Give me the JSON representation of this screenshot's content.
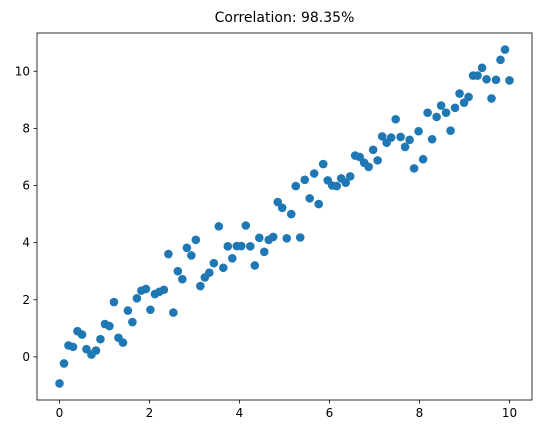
{
  "chart_data": {
    "type": "scatter",
    "title": "Correlation: 98.35%",
    "color": "#1f77b4",
    "x": [
      0,
      0.1,
      0.2,
      0.3,
      0.4,
      0.5,
      0.6,
      0.71,
      0.81,
      0.91,
      1.01,
      1.11,
      1.21,
      1.31,
      1.41,
      1.52,
      1.62,
      1.72,
      1.82,
      1.92,
      2.02,
      2.12,
      2.22,
      2.32,
      2.42,
      2.53,
      2.63,
      2.73,
      2.83,
      2.93,
      3.03,
      3.13,
      3.23,
      3.33,
      3.43,
      3.54,
      3.64,
      3.74,
      3.84,
      3.94,
      4.04,
      4.14,
      4.24,
      4.34,
      4.44,
      4.55,
      4.65,
      4.75,
      4.85,
      4.95,
      5.05,
      5.15,
      5.25,
      5.35,
      5.45,
      5.56,
      5.66,
      5.76,
      5.86,
      5.96,
      6.06,
      6.16,
      6.26,
      6.36,
      6.46,
      6.57,
      6.67,
      6.77,
      6.87,
      6.97,
      7.07,
      7.17,
      7.27,
      7.37,
      7.47,
      7.58,
      7.68,
      7.78,
      7.88,
      7.98,
      8.08,
      8.18,
      8.28,
      8.38,
      8.48,
      8.59,
      8.69,
      8.79,
      8.89,
      8.99,
      9.09,
      9.19,
      9.29,
      9.39,
      9.49,
      9.6,
      9.7,
      9.8,
      9.9,
      10
    ],
    "values": [
      -0.93,
      -0.23,
      0.4,
      0.35,
      0.9,
      0.78,
      0.27,
      0.08,
      0.22,
      0.62,
      1.15,
      1.08,
      1.92,
      0.67,
      0.5,
      1.62,
      1.22,
      2.05,
      2.32,
      2.38,
      1.65,
      2.2,
      2.28,
      2.35,
      3.6,
      1.55,
      3.0,
      2.72,
      3.82,
      3.55,
      4.1,
      2.48,
      2.78,
      2.95,
      3.28,
      4.57,
      3.12,
      3.87,
      3.45,
      3.88,
      3.88,
      4.6,
      3.87,
      3.2,
      4.17,
      3.68,
      4.1,
      4.2,
      5.42,
      5.22,
      4.15,
      5.0,
      5.98,
      4.18,
      6.2,
      5.55,
      6.42,
      5.35,
      6.75,
      6.18,
      6.0,
      5.98,
      6.25,
      6.1,
      6.32,
      7.05,
      7.0,
      6.8,
      6.65,
      7.25,
      6.88,
      7.72,
      7.5,
      7.68,
      8.32,
      7.7,
      7.35,
      7.6,
      6.6,
      7.9,
      6.92,
      8.55,
      7.62,
      8.4,
      8.8,
      8.55,
      7.92,
      8.72,
      9.22,
      8.9,
      9.1,
      9.85,
      9.85,
      10.12,
      9.72,
      9.05,
      9.7,
      10.4,
      10.76,
      9.68
    ],
    "xlim": [
      -0.5,
      10.5
    ],
    "ylim": [
      -1.51,
      11.34
    ],
    "xticks": [
      0,
      2,
      4,
      6,
      8,
      10
    ],
    "yticks": [
      0,
      2,
      4,
      6,
      8,
      10
    ]
  }
}
